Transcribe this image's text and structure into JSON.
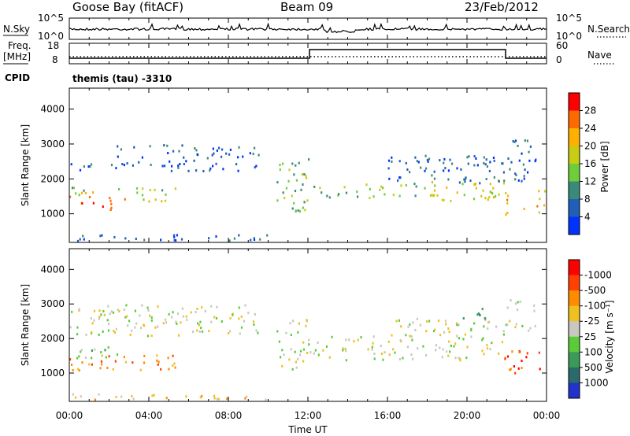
{
  "header": {
    "station": "Goose Bay (fitACF)",
    "beam": "Beam 09",
    "date": "23/Feb/2012"
  },
  "top_panel": {
    "nsky_label": "N.Sky",
    "nsky_ticks": [
      "10^5",
      "10^0"
    ],
    "nsearch_label": "N.Search",
    "nsearch_ticks": [
      "10^5",
      "10^0"
    ],
    "freq_label_1": "Freq.",
    "freq_label_2": "[MHz]",
    "freq_ticks": [
      "18",
      "8"
    ],
    "nave_label": "Nave",
    "nave_ticks": [
      "60",
      "0"
    ],
    "cpid_label": "CPID",
    "cpid_value": "themis (tau) -3310"
  },
  "chart_data": [
    {
      "type": "heatmap",
      "name": "power-panel",
      "ylabel": "Slant Range [km]",
      "xlabel": "",
      "x_ticks": [
        "00:00",
        "04:00",
        "08:00",
        "12:00",
        "16:00",
        "20:00",
        "00:00"
      ],
      "y_ticks": [
        1000,
        2000,
        3000,
        4000
      ],
      "ylim": [
        180,
        4600
      ],
      "colorbar_label": "Power [dB]",
      "colorbar_ticks": [
        "4",
        "8",
        "12",
        "16",
        "20",
        "24",
        "28"
      ],
      "colors": [
        "#0033ff",
        "#1f5fb8",
        "#3a8a7a",
        "#6fcc3a",
        "#c8cc12",
        "#ffb000",
        "#ff6a00",
        "#ff0000"
      ],
      "regions": [
        {
          "t0": 0.0,
          "t1": 2.3,
          "r0": 2200,
          "r1": 2500,
          "level": 1
        },
        {
          "t0": 2.3,
          "t1": 9.5,
          "r0": 2250,
          "r1": 3000,
          "level": 1
        },
        {
          "t0": 0.0,
          "t1": 5.5,
          "r0": 1550,
          "r1": 1800,
          "level": 3
        },
        {
          "t0": 0.0,
          "t1": 2.8,
          "r0": 1150,
          "r1": 1650,
          "level": 6
        },
        {
          "t0": 2.8,
          "t1": 5.0,
          "r0": 1250,
          "r1": 1450,
          "level": 4
        },
        {
          "t0": 0.0,
          "t1": 10.5,
          "r0": 200,
          "r1": 420,
          "level": 1
        },
        {
          "t0": 10.4,
          "t1": 12.0,
          "r0": 1100,
          "r1": 2600,
          "level": 3
        },
        {
          "t0": 12.0,
          "t1": 17.5,
          "r0": 1450,
          "r1": 1900,
          "level": 3
        },
        {
          "t0": 17.5,
          "t1": 22.0,
          "r0": 1400,
          "r1": 2000,
          "level": 4
        },
        {
          "t0": 16.0,
          "t1": 23.5,
          "r0": 1900,
          "r1": 2700,
          "level": 1
        },
        {
          "t0": 21.8,
          "t1": 24.0,
          "r0": 1000,
          "r1": 1700,
          "level": 5
        },
        {
          "t0": 22.0,
          "t1": 23.7,
          "r0": 2700,
          "r1": 3200,
          "level": 1
        }
      ]
    },
    {
      "type": "heatmap",
      "name": "velocity-panel",
      "ylabel": "Slant Range [km]",
      "xlabel": "Time UT",
      "x_ticks": [
        "00:00",
        "04:00",
        "08:00",
        "12:00",
        "16:00",
        "20:00",
        "00:00"
      ],
      "y_ticks": [
        1000,
        2000,
        3000,
        4000
      ],
      "ylim": [
        180,
        4600
      ],
      "colorbar_label": "Velocity [m s⁻¹]",
      "colorbar_ticks": [
        "1000",
        "500",
        "100",
        "25",
        "-25",
        "-100",
        "-500",
        "-1000"
      ],
      "colors": [
        "#2233cc",
        "#2a6a6a",
        "#3a9a5a",
        "#5acc3a",
        "#c8c8c0",
        "#f0c020",
        "#ff8c00",
        "#ff4000",
        "#ff0000"
      ],
      "regions": [
        {
          "t0": 0.0,
          "t1": 9.5,
          "r0": 2100,
          "r1": 3000,
          "level": 4
        },
        {
          "t0": 0.0,
          "t1": 2.5,
          "r0": 1450,
          "r1": 1800,
          "level": 3
        },
        {
          "t0": 0.0,
          "t1": 5.5,
          "r0": 1100,
          "r1": 1550,
          "level": 6
        },
        {
          "t0": 0.0,
          "t1": 10.5,
          "r0": 200,
          "r1": 420,
          "level": 5
        },
        {
          "t0": 10.4,
          "t1": 12.0,
          "r0": 1100,
          "r1": 2600,
          "level": 4
        },
        {
          "t0": 12.0,
          "t1": 21.8,
          "r0": 1400,
          "r1": 2100,
          "level": 4
        },
        {
          "t0": 16.0,
          "t1": 23.5,
          "r0": 2100,
          "r1": 2600,
          "level": 4
        },
        {
          "t0": 19.5,
          "t1": 21.0,
          "r0": 2600,
          "r1": 2900,
          "level": 2
        },
        {
          "t0": 21.8,
          "t1": 24.0,
          "r0": 1000,
          "r1": 1700,
          "level": 7
        },
        {
          "t0": 22.0,
          "t1": 23.7,
          "r0": 2800,
          "r1": 3200,
          "level": 4
        }
      ]
    }
  ]
}
